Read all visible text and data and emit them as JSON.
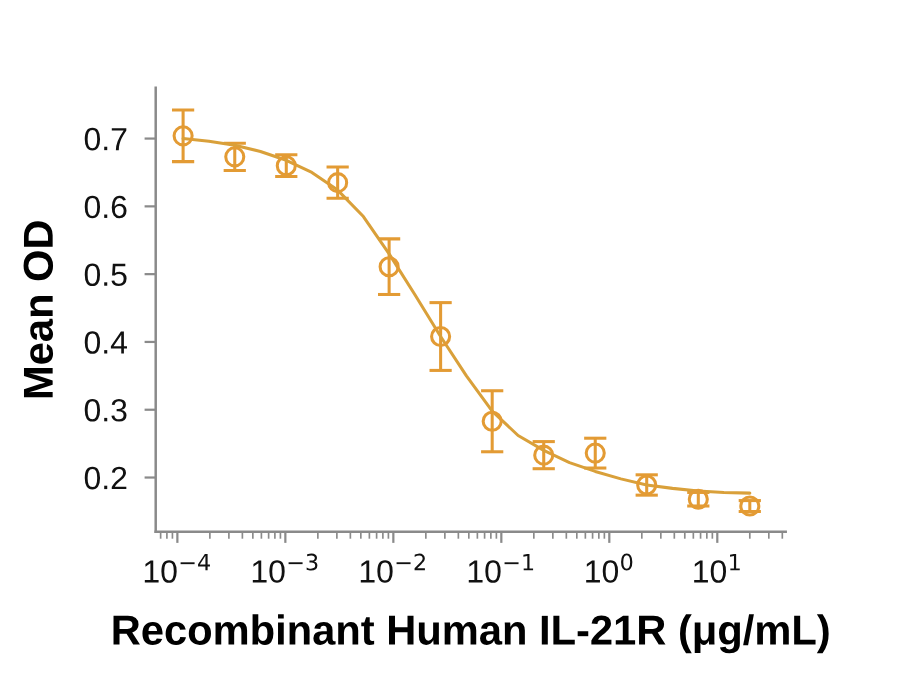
{
  "chart_data": {
    "type": "scatter",
    "xlabel": "Recombinant Human IL-21R (μg/mL)",
    "ylabel": "Mean OD",
    "log": "x",
    "xlim": [
      6.3e-05,
      43
    ],
    "xticks": [
      {
        "value": 0.0001,
        "label": "10$^{−4}$"
      },
      {
        "value": 0.001,
        "label": "10$^{−3}$"
      },
      {
        "value": 0.01,
        "label": "10$^{−2}$"
      },
      {
        "value": 0.1,
        "label": "10$^{−1}$"
      },
      {
        "value": 1,
        "label": "10$^{0}$"
      },
      {
        "value": 10,
        "label": "10$^{1}$"
      }
    ],
    "ylim": [
      0.12,
      0.775
    ],
    "yticks": [
      0.2,
      0.3,
      0.4,
      0.5,
      0.6,
      0.7
    ],
    "grid": false,
    "series": [
      {
        "marker": "circle",
        "color": "#e39b34",
        "x": [
          0.000113,
          0.00034,
          0.00102,
          0.00305,
          0.00914,
          0.0274,
          0.0823,
          0.247,
          0.741,
          2.22,
          6.67,
          20
        ],
        "values": [
          0.704,
          0.673,
          0.66,
          0.635,
          0.511,
          0.408,
          0.283,
          0.233,
          0.236,
          0.189,
          0.168,
          0.158
        ],
        "errors": [
          0.038,
          0.02,
          0.016,
          0.023,
          0.041,
          0.05,
          0.045,
          0.02,
          0.022,
          0.015,
          0.01,
          0.008
        ]
      },
      {
        "type": "line",
        "marker": "none",
        "line_style": "solid",
        "color": "#d9a03a",
        "x": [
          0.000113,
          0.000196,
          0.00034,
          0.000588,
          0.00102,
          0.00176,
          0.00305,
          0.00528,
          0.00914,
          0.0158,
          0.0274,
          0.0475,
          0.0823,
          0.143,
          0.247,
          0.428,
          0.741,
          1.28,
          2.22,
          3.85,
          6.67,
          11.5,
          20
        ],
        "values": [
          0.7,
          0.696,
          0.69,
          0.681,
          0.668,
          0.65,
          0.624,
          0.585,
          0.53,
          0.47,
          0.408,
          0.35,
          0.298,
          0.262,
          0.24,
          0.222,
          0.209,
          0.198,
          0.189,
          0.184,
          0.18,
          0.178,
          0.177
        ]
      }
    ]
  }
}
